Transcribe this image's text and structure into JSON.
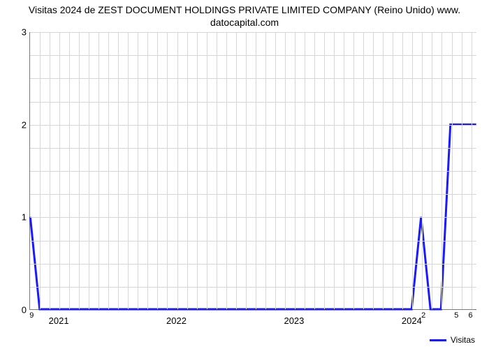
{
  "chart": {
    "type": "line",
    "title_line1": "Visitas 2024 de ZEST DOCUMENT HOLDINGS PRIVATE LIMITED COMPANY (Reino Unido) www.",
    "title_line2": "datocapital.com",
    "title_fontsize": 14,
    "background_color": "#ffffff",
    "grid_color": "#d6d6d6",
    "axis_color": "#7a7a7a",
    "line_color": "#1a1aff",
    "line_width": 3,
    "legend_label": "Visitas",
    "ylim": [
      0,
      3
    ],
    "ytick_step_major": 1,
    "y_minor_count": 3,
    "ytick_labels": [
      "0",
      "1",
      "2",
      "3"
    ],
    "x_start": 2020.75,
    "x_end": 2024.55,
    "x_major_ticks": [
      2021,
      2022,
      2023,
      2024
    ],
    "x_major_labels": [
      "2021",
      "2022",
      "2023",
      "2024"
    ],
    "x_minor_count": 11,
    "inset_top": {
      "x": 2020.77,
      "text": "9"
    },
    "inset_256": [
      {
        "x": 2024.1,
        "text": "2"
      },
      {
        "x": 2024.38,
        "text": "5"
      },
      {
        "x": 2024.5,
        "text": "6"
      }
    ],
    "series": {
      "xs": [
        2020.75,
        2020.83,
        2024.0,
        2024.08,
        2024.16,
        2024.25,
        2024.33,
        2024.41,
        2024.55
      ],
      "ys": [
        1.0,
        0.0,
        0.0,
        1.0,
        0.0,
        0.0,
        2.0,
        2.0,
        2.0
      ]
    }
  }
}
